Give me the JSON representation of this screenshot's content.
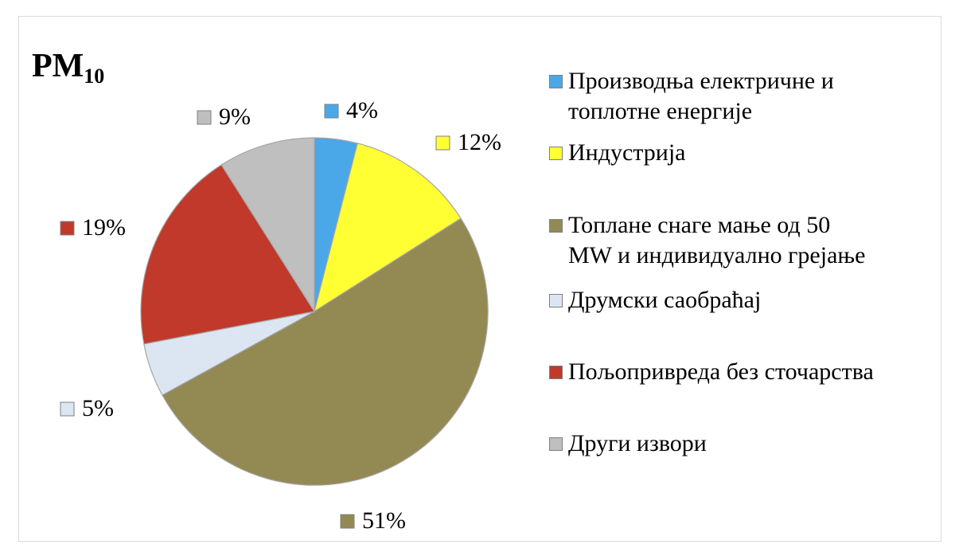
{
  "chart_data": {
    "type": "pie",
    "title": "PM",
    "title_subscript": "10",
    "categories": [
      "Производња електричне  и топлотне  енергије",
      "Индустрија",
      "Топлане снаге мање од 50 MW и индивидуално  грејање",
      "Друмски саобраћај",
      "Пољопривреда  без сточарства",
      "Други извори"
    ],
    "legend_lines": [
      "Производња електричне  и\nтоплотне  енергије",
      "Индустрија",
      "Топлане снаге мање од 50\nMW и индивидуално  грејање",
      "Друмски саобраћај",
      "Пољопривреда  без сточарства",
      "Други извори"
    ],
    "values": [
      4,
      12,
      51,
      5,
      19,
      9
    ],
    "labels": [
      "4%",
      "12%",
      "51%",
      "5%",
      "19%",
      "9%"
    ],
    "colors": [
      "#4aa8e8",
      "#ffff33",
      "#938953",
      "#dce6f2",
      "#c0392b",
      "#bfbfbf"
    ],
    "start_angle": "12 o'clock",
    "direction": "clockwise",
    "legend_position": "right"
  }
}
